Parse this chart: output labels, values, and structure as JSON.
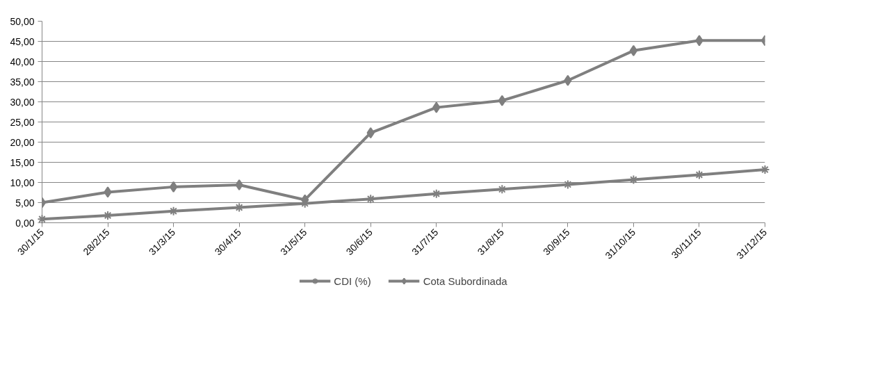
{
  "chart_data": {
    "type": "line",
    "categories": [
      "30/1/15",
      "28/2/15",
      "31/3/15",
      "30/4/15",
      "31/5/15",
      "30/6/15",
      "31/7/15",
      "31/8/15",
      "30/9/15",
      "31/10/15",
      "30/11/15",
      "31/12/15"
    ],
    "series": [
      {
        "name": "CDI (%)",
        "color": "#7f7f7f",
        "marker": "cross",
        "values": [
          0.9,
          1.8,
          2.9,
          3.8,
          4.8,
          5.9,
          7.2,
          8.3,
          9.5,
          10.7,
          11.9,
          13.2
        ]
      },
      {
        "name": "Cota Subordinada",
        "color": "#7f7f7f",
        "marker": "diamond",
        "values": [
          5.0,
          7.6,
          8.9,
          9.4,
          5.7,
          22.3,
          28.6,
          30.3,
          35.3,
          42.7,
          45.2,
          45.2
        ]
      }
    ],
    "ylim": [
      0,
      50
    ],
    "yticks": [
      {
        "value": 0,
        "label": "0,00"
      },
      {
        "value": 5,
        "label": "5,00"
      },
      {
        "value": 10,
        "label": "10,00"
      },
      {
        "value": 15,
        "label": "15,00"
      },
      {
        "value": 20,
        "label": "20,00"
      },
      {
        "value": 25,
        "label": "25,00"
      },
      {
        "value": 30,
        "label": "30,00"
      },
      {
        "value": 35,
        "label": "35,00"
      },
      {
        "value": 40,
        "label": "40,00"
      },
      {
        "value": 45,
        "label": "45,00"
      },
      {
        "value": 50,
        "label": "50,00"
      }
    ],
    "grid": "y",
    "legend": "bottom",
    "line_style": "solid"
  }
}
